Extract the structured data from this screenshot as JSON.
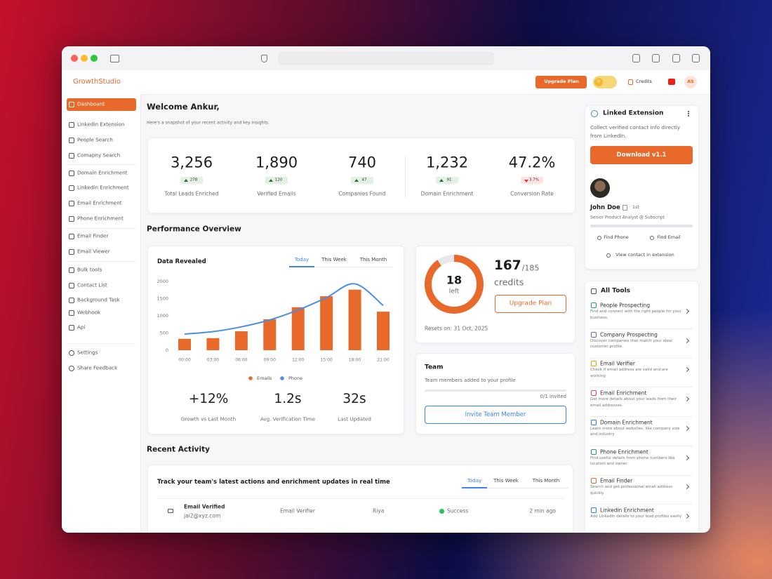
{
  "app": {
    "brand": "GrowthStudio",
    "header": {
      "upgrade": "Upgrade Plan",
      "credit_badge": "0",
      "credits": "Credits",
      "avatar": "AS"
    }
  },
  "sidebar": {
    "items": [
      "Dashboard",
      "Linkedin Extension",
      "People Search",
      "Comapny Search",
      "Domain Enrichment",
      "Linkedin Enrichment",
      "Email Enrichment",
      "Phone Enrichment",
      "Email Finder",
      "Email Viewer",
      "Bulk tools",
      "Contact List",
      "Background Task",
      "Webhook",
      "Api"
    ],
    "footer": [
      "Settings",
      "Share Feedback"
    ]
  },
  "welcome": {
    "title": "Welcome Ankur,",
    "subtitle": "Here's a snapshot of your recent activity and key insights."
  },
  "stats": [
    {
      "value": "3,256",
      "change": "278",
      "trend": "up",
      "label": "Total Leads Enriched"
    },
    {
      "value": "1,890",
      "change": "120",
      "trend": "up",
      "label": "Verified Emails"
    },
    {
      "value": "740",
      "change": "47",
      "trend": "up",
      "label": "Companies Found"
    },
    {
      "value": "1,232",
      "change": "91",
      "trend": "up",
      "label": "Domain Enrichment"
    },
    {
      "value": "47.2%",
      "change": "3.7%",
      "trend": "down",
      "label": "Conversion Rate"
    }
  ],
  "performance": {
    "title": "Performance Overview",
    "card_title": "Data Revealed",
    "tabs": [
      "Today",
      "This Week",
      "This Month"
    ],
    "metrics": [
      {
        "value": "+12%",
        "label": "Growth vs Last Month"
      },
      {
        "value": "1.2s",
        "label": "Avg. Verification Time"
      },
      {
        "value": "32s",
        "label": "Last Updated"
      }
    ]
  },
  "chart_data": {
    "type": "bar",
    "categories": [
      "00:00",
      "03:00",
      "06:00",
      "09:00",
      "12:00",
      "15:00",
      "18:00",
      "21:00"
    ],
    "series": [
      {
        "name": "Emails",
        "type": "bar",
        "color": "#e8692a",
        "values": [
          330,
          350,
          550,
          900,
          1250,
          1570,
          1760,
          1120
        ]
      },
      {
        "name": "Phone",
        "type": "line",
        "color": "#4a8fe7",
        "values": [
          470,
          540,
          680,
          880,
          1170,
          1530,
          1930,
          1300
        ]
      }
    ],
    "ylim": [
      0,
      2000
    ],
    "yticks": [
      0,
      500,
      1000,
      1500,
      2000
    ],
    "grid": false
  },
  "credits": {
    "left": 18,
    "left_label": "left",
    "used": 167,
    "total": {
      "value": 185,
      "label": "/185"
    },
    "unit": "credits",
    "button": "Upgrade Plan",
    "resets": "Resets on: 31 Oct, 2025",
    "ring_color": "#e8692a"
  },
  "team": {
    "title": "Team",
    "subtitle": "Team members added to your profile",
    "invited": "0/1 invited",
    "button": "Invite Team Member"
  },
  "recent": {
    "title": "Recent Activity",
    "subtitle": "Track your team's latest actions and enrichment updates in real time",
    "tabs": [
      "Today",
      "This Week",
      "This Month"
    ],
    "rows": [
      {
        "event": "Email Verified",
        "email": "jai2@xyz.com",
        "tool": "Email Verifier",
        "user": "Riya",
        "status": "Success",
        "time": "2 min ago"
      }
    ]
  },
  "extension": {
    "title": "Linked Extension",
    "description": "Collect verified contact info directly from LinkedIn.",
    "button": "Download v1.1",
    "profile": {
      "name": "John Doe",
      "degree": "· 1st",
      "headline": "Senior Product Analyst @ Subscript"
    },
    "actions": [
      "Find Phone",
      "Find Email"
    ],
    "link": "View contact in extension"
  },
  "tools": {
    "title": "All Tools",
    "items": [
      {
        "name": "People Prospecting",
        "description": "Find and connect with the right people for your business."
      },
      {
        "name": "Company Prospecting",
        "description": "Discover companies that match your ideal customer profile."
      },
      {
        "name": "Email Verifier",
        "description": "Check if email address are valid and are working"
      },
      {
        "name": "Email Enrichment",
        "description": "Get more details about your leads from their email addresses."
      },
      {
        "name": "Domain Enrichment",
        "description": "Learn more about websites, like company size and industry"
      },
      {
        "name": "Phone Enrichment",
        "description": "Find useful details from phone numbers like location and owner"
      },
      {
        "name": "Email Finder",
        "description": "Search and get professional email address quickly"
      },
      {
        "name": "Linkedin Enrichment",
        "description": "Add LinkedIn details to your lead profiles easily"
      }
    ]
  }
}
